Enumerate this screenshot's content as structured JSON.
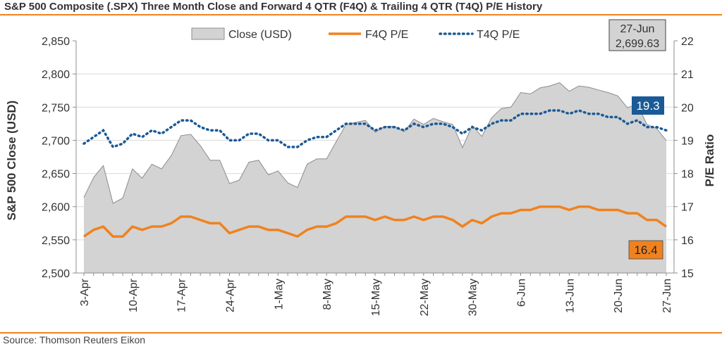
{
  "header": {
    "title": "S&P 500 Composite (.SPX) Three Month Close and Forward 4 QTR (F4Q) & Trailing 4 QTR (T4Q) P/E History"
  },
  "footer": {
    "source": "Source: Thomson Reuters Eikon"
  },
  "chart_data": {
    "type": "line",
    "ylabel": "S&P 500 Close (USD)",
    "y2label": "P/E Ratio",
    "ylim": [
      2500,
      2850
    ],
    "y2lim": [
      15,
      22
    ],
    "yticks": [
      "2,500",
      "2,550",
      "2,600",
      "2,650",
      "2,700",
      "2,750",
      "2,800",
      "2,850"
    ],
    "y2ticks": [
      "15",
      "16",
      "17",
      "18",
      "19",
      "20",
      "21",
      "22"
    ],
    "xtick_labels": [
      "3-Apr",
      "10-Apr",
      "17-Apr",
      "24-Apr",
      "1-May",
      "8-May",
      "15-May",
      "22-May",
      "30-May",
      "6-Jun",
      "13-Jun",
      "20-Jun",
      "27-Jun"
    ],
    "xtick_index": [
      0,
      5,
      10,
      15,
      20,
      25,
      30,
      35,
      40,
      45,
      50,
      55,
      60
    ],
    "legend": {
      "position": "top",
      "entries": [
        "Close (USD)",
        "F4Q P/E",
        "T4Q P/E"
      ]
    },
    "colors": {
      "close": "#d3d3d3",
      "close_edge": "#8c8c8c",
      "f4q": "#f0821e",
      "t4q": "#1a5a96",
      "accent": "#f0821e"
    },
    "series": [
      {
        "name": "Close (USD)",
        "values": [
          2614,
          2644,
          2662,
          2605,
          2613,
          2657,
          2643,
          2664,
          2657,
          2677,
          2707,
          2709,
          2692,
          2670,
          2670,
          2635,
          2640,
          2667,
          2670,
          2648,
          2654,
          2636,
          2629,
          2664,
          2672,
          2672,
          2698,
          2724,
          2727,
          2730,
          2712,
          2721,
          2721,
          2713,
          2732,
          2724,
          2733,
          2728,
          2724,
          2689,
          2722,
          2706,
          2734,
          2748,
          2750,
          2772,
          2770,
          2779,
          2782,
          2787,
          2774,
          2782,
          2780,
          2776,
          2772,
          2767,
          2749,
          2755,
          2724,
          2718,
          2699.63
        ]
      },
      {
        "name": "F4Q P/E",
        "values": [
          16.1,
          16.3,
          16.4,
          16.1,
          16.1,
          16.4,
          16.3,
          16.4,
          16.4,
          16.5,
          16.7,
          16.7,
          16.6,
          16.5,
          16.5,
          16.2,
          16.3,
          16.4,
          16.4,
          16.3,
          16.3,
          16.2,
          16.1,
          16.3,
          16.4,
          16.4,
          16.5,
          16.7,
          16.7,
          16.7,
          16.6,
          16.7,
          16.6,
          16.6,
          16.7,
          16.6,
          16.7,
          16.7,
          16.6,
          16.4,
          16.6,
          16.5,
          16.7,
          16.8,
          16.8,
          16.9,
          16.9,
          17.0,
          17.0,
          17.0,
          16.9,
          17.0,
          17.0,
          16.9,
          16.9,
          16.9,
          16.8,
          16.8,
          16.6,
          16.6,
          16.4
        ]
      },
      {
        "name": "T4Q P/E",
        "values": [
          18.9,
          19.1,
          19.3,
          18.8,
          18.9,
          19.2,
          19.1,
          19.3,
          19.2,
          19.4,
          19.6,
          19.6,
          19.4,
          19.3,
          19.3,
          19.0,
          19.0,
          19.2,
          19.2,
          19.0,
          19.0,
          18.8,
          18.8,
          19.0,
          19.1,
          19.1,
          19.3,
          19.5,
          19.5,
          19.5,
          19.3,
          19.4,
          19.4,
          19.3,
          19.5,
          19.4,
          19.5,
          19.5,
          19.4,
          19.2,
          19.4,
          19.3,
          19.5,
          19.6,
          19.6,
          19.8,
          19.8,
          19.8,
          19.9,
          19.9,
          19.8,
          19.9,
          19.8,
          19.8,
          19.7,
          19.7,
          19.5,
          19.6,
          19.4,
          19.4,
          19.3
        ]
      }
    ],
    "annotations": {
      "last_date": "27-Jun",
      "last_close": "2,699.63",
      "t4q_last": "19.3",
      "f4q_last": "16.4"
    }
  }
}
